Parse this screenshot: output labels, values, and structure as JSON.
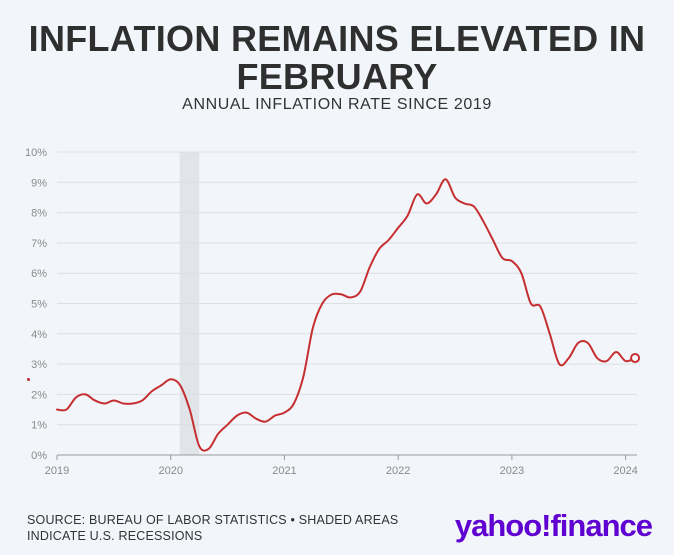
{
  "header": {
    "title_line1": "INFLATION REMAINS ELEVATED IN",
    "title_line2": "FEBRUARY",
    "subtitle": "ANNUAL INFLATION RATE SINCE 2019"
  },
  "footer": {
    "source_line1": "SOURCE: BUREAU OF LABOR STATISTICS • SHADED AREAS",
    "source_line2": "INDICATE U.S. RECESSIONS",
    "logo_yahoo": "yahoo",
    "logo_bang": "!",
    "logo_finance": "finance"
  },
  "colors": {
    "line": "#c62f31",
    "recession": "#e1e4e8",
    "grid": "#dcdfe4",
    "axis_text": "#8a8a8a",
    "logo": "#5f01d1"
  },
  "chart_data": {
    "type": "line",
    "title": "ANNUAL INFLATION RATE SINCE 2019",
    "xlabel": "",
    "ylabel": "",
    "ylim": [
      0,
      10
    ],
    "xlim": [
      2019,
      2024.1
    ],
    "y_ticks": [
      0,
      1,
      2,
      3,
      4,
      5,
      6,
      7,
      8,
      9,
      10
    ],
    "y_tick_labels": [
      "0%",
      "1%",
      "2%",
      "3%",
      "4%",
      "5%",
      "6%",
      "7%",
      "8%",
      "9%",
      "10%"
    ],
    "x_ticks": [
      2019,
      2020,
      2021,
      2022,
      2023,
      2024
    ],
    "x_tick_labels": [
      "2019",
      "2020",
      "2021",
      "2022",
      "2023",
      "2024"
    ],
    "grid": true,
    "recessions": [
      {
        "start": 2020.08,
        "end": 2020.25,
        "label": "shaded recession"
      }
    ],
    "series": [
      {
        "name": "Annual inflation rate",
        "end_marker": true,
        "x": [
          2019.0,
          2019.083,
          2019.167,
          2019.25,
          2019.333,
          2019.417,
          2019.5,
          2019.583,
          2019.667,
          2019.75,
          2019.833,
          2019.917,
          2020.0,
          2020.083,
          2020.167,
          2020.25,
          2020.333,
          2020.417,
          2020.5,
          2020.583,
          2020.667,
          2020.75,
          2020.833,
          2020.917,
          2021.0,
          2021.083,
          2021.167,
          2021.25,
          2021.333,
          2021.417,
          2021.5,
          2021.583,
          2021.667,
          2021.75,
          2021.833,
          2021.917,
          2022.0,
          2022.083,
          2022.167,
          2022.25,
          2022.333,
          2022.417,
          2022.5,
          2022.583,
          2022.667,
          2022.75,
          2022.833,
          2022.917,
          2023.0,
          2023.083,
          2023.167,
          2023.25,
          2023.333,
          2023.417,
          2023.5,
          2023.583,
          2023.667,
          2023.75,
          2023.833,
          2023.917,
          2024.0,
          2024.083
        ],
        "values": [
          1.5,
          1.5,
          1.9,
          2.0,
          1.8,
          1.7,
          1.8,
          1.7,
          1.7,
          1.8,
          2.1,
          2.3,
          2.5,
          2.3,
          1.5,
          0.3,
          0.2,
          0.7,
          1.0,
          1.3,
          1.4,
          1.2,
          1.1,
          1.3,
          1.4,
          1.7,
          2.6,
          4.2,
          5.0,
          5.3,
          5.3,
          5.2,
          5.4,
          6.2,
          6.8,
          7.1,
          7.5,
          7.9,
          8.6,
          8.3,
          8.6,
          9.1,
          8.5,
          8.3,
          8.2,
          7.7,
          7.1,
          6.5,
          6.4,
          6.0,
          5.0,
          4.9,
          4.0,
          3.0,
          3.2,
          3.7,
          3.7,
          3.2,
          3.1,
          3.4,
          3.1,
          3.2
        ]
      }
    ]
  }
}
